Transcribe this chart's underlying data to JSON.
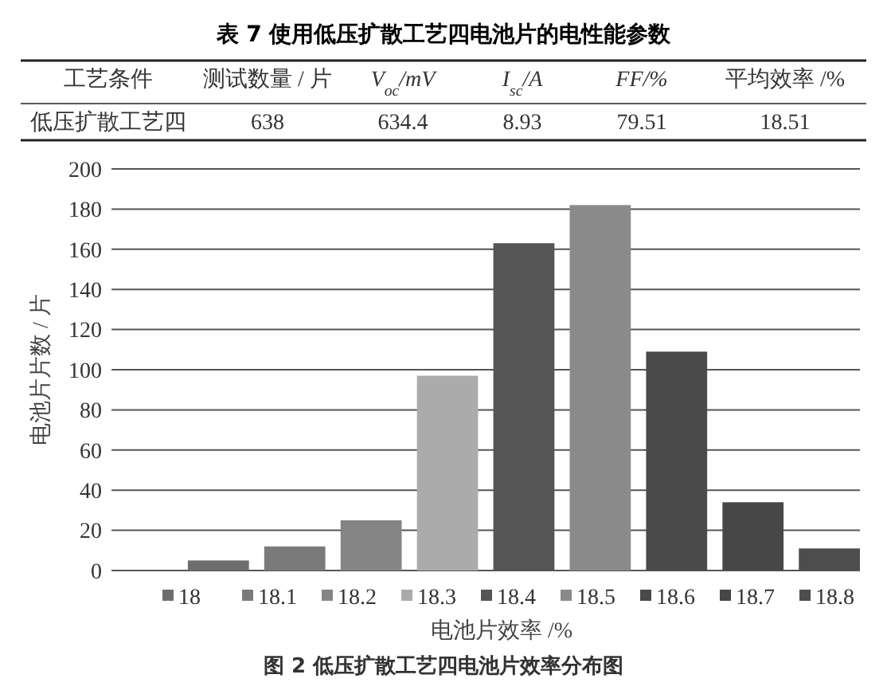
{
  "chart_data": [
    {
      "type": "other",
      "title": "表 7  使用低压扩散工艺四电池片的电性能参数",
      "annotations": [
        "工艺条件",
        "测试数量 / 片",
        "V$_{oc}$/mV",
        "I$_{sc}$/A",
        "FF/%",
        "平均效率 /%",
        "低压扩散工艺四",
        "638",
        "634.4",
        "8.93",
        "79.51",
        "18.51"
      ]
    },
    {
      "type": "bar",
      "title": "图 2  低压扩散工艺四电池片效率分布图",
      "xlabel": "电池片效率 /%",
      "ylabel": "电池片片数 / 片",
      "categories": [
        null
      ],
      "series": [
        {
          "name": "18",
          "color": "#6d6d6d",
          "values": [
            5
          ]
        },
        {
          "name": "18.1",
          "color": "#7a7a7a",
          "values": [
            12
          ]
        },
        {
          "name": "18.2",
          "color": "#858585",
          "values": [
            25
          ]
        },
        {
          "name": "18.3",
          "color": "#ababab",
          "values": [
            97
          ]
        },
        {
          "name": "18.4",
          "color": "#555555",
          "values": [
            163
          ]
        },
        {
          "name": "18.5",
          "color": "#8a8a8a",
          "values": [
            182
          ]
        },
        {
          "name": "18.6",
          "color": "#4a4a4a",
          "values": [
            109
          ]
        },
        {
          "name": "18.7",
          "color": "#474747",
          "values": [
            34
          ]
        },
        {
          "name": "18.8",
          "color": "#4d4d4d",
          "values": [
            11
          ]
        }
      ],
      "ylim": [
        0,
        200
      ],
      "yticks": [
        0,
        20,
        40,
        60,
        80,
        100,
        120,
        140,
        160,
        180,
        200
      ],
      "grid": "y",
      "legend": "bottom",
      "tick_labels": "y"
    }
  ]
}
